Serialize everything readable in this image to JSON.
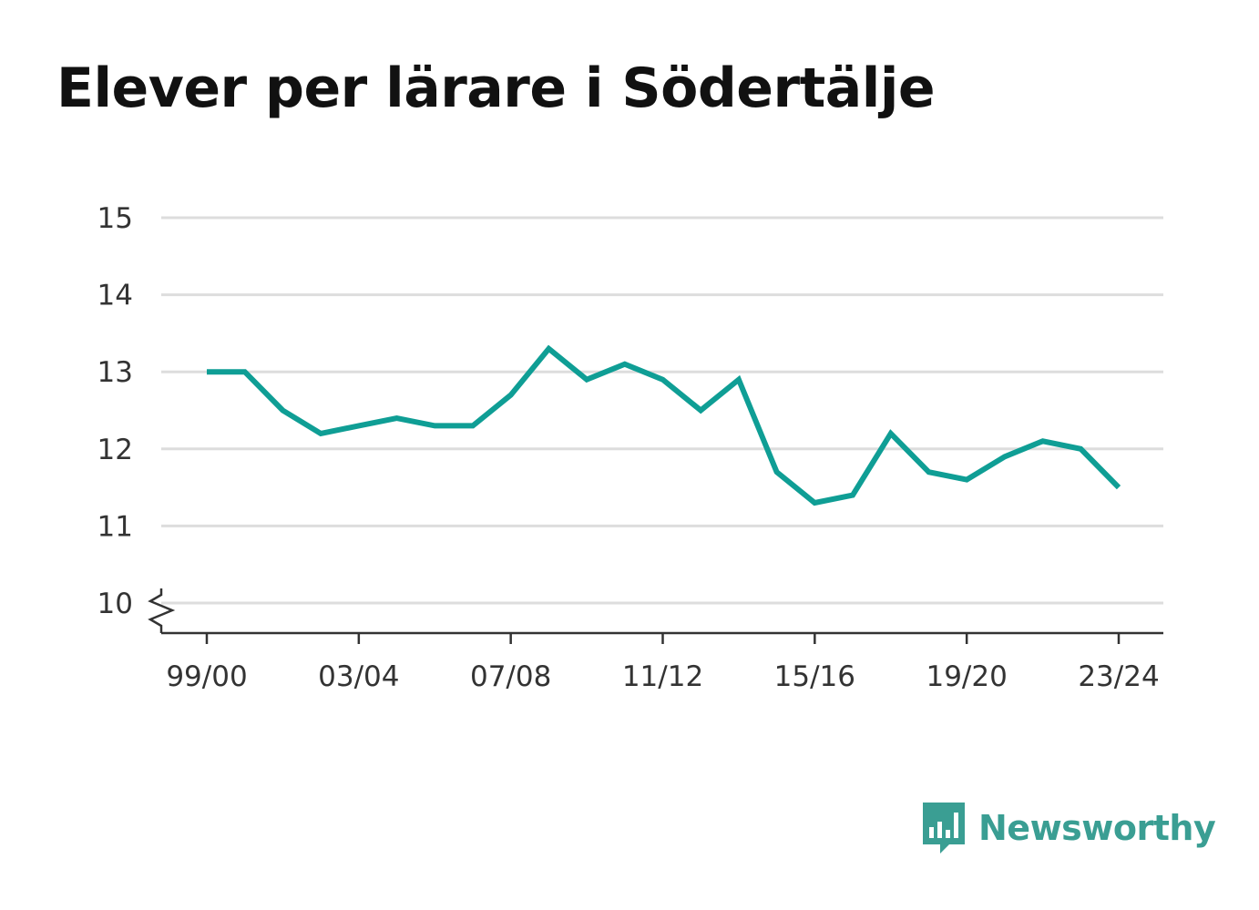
{
  "title": "Elever per lärare i Södertälje",
  "brand": {
    "name": "Newsworthy",
    "icon": "bar-chart-speech-bubble-icon",
    "color": "#3a9e93"
  },
  "chart_data": {
    "type": "line",
    "title": "Elever per lärare i Södertälje",
    "xlabel": "",
    "ylabel": "",
    "x": [
      "99/00",
      "00/01",
      "01/02",
      "02/03",
      "03/04",
      "04/05",
      "05/06",
      "06/07",
      "07/08",
      "08/09",
      "09/10",
      "10/11",
      "11/12",
      "12/13",
      "13/14",
      "14/15",
      "15/16",
      "16/17",
      "17/18",
      "18/19",
      "19/20",
      "20/21",
      "21/22",
      "22/23",
      "23/24"
    ],
    "xticks": [
      "99/00",
      "03/04",
      "07/08",
      "11/12",
      "15/16",
      "19/20",
      "23/24"
    ],
    "yticks": [
      10,
      11,
      12,
      13,
      14,
      15
    ],
    "ylim": [
      10,
      15
    ],
    "y_axis_break": true,
    "grid": true,
    "series": [
      {
        "color": "#0f9e95",
        "values": [
          13.0,
          13.0,
          12.5,
          12.2,
          12.3,
          12.4,
          12.3,
          12.3,
          12.7,
          13.3,
          12.9,
          13.1,
          12.9,
          12.5,
          12.9,
          11.7,
          11.3,
          11.4,
          12.2,
          11.7,
          11.6,
          11.9,
          12.1,
          12.0,
          11.5
        ]
      }
    ]
  }
}
